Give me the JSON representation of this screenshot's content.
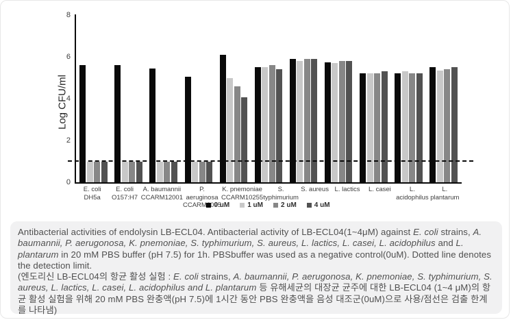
{
  "chart_data": {
    "type": "bar",
    "title": "",
    "xlabel": "",
    "ylabel": "Log CFU/ml",
    "ylim": [
      0,
      8
    ],
    "yticks": [
      0,
      2,
      4,
      6,
      8
    ],
    "grid": false,
    "legend_position": "bottom",
    "detection_limit": 1.0,
    "categories": [
      "E. coli DH5a",
      "E. coli O157:H7",
      "A. baumannii\nCCARM12001",
      "P. aeruginosa\nCCARM2095",
      "K. pnemoniae\nCCARM10255",
      "S. typhimurium",
      "S. aureus",
      "L. lactics",
      "L. casei",
      "L. acidophilus",
      "L. plantarum"
    ],
    "series": [
      {
        "name": "0 uM",
        "color": "#0a0a0a",
        "values": [
          5.6,
          5.6,
          5.45,
          5.05,
          6.1,
          5.5,
          5.9,
          5.75,
          5.2,
          5.2,
          5.5
        ]
      },
      {
        "name": "1 uM",
        "color": "#c8c8c8",
        "values": [
          1.0,
          1.0,
          1.0,
          1.0,
          5.0,
          5.5,
          5.8,
          5.7,
          5.2,
          5.3,
          5.35
        ]
      },
      {
        "name": "2 uM",
        "color": "#878787",
        "values": [
          1.0,
          1.0,
          1.0,
          1.0,
          4.6,
          5.6,
          5.9,
          5.8,
          5.2,
          5.2,
          5.4
        ]
      },
      {
        "name": "4 uM",
        "color": "#525252",
        "values": [
          1.0,
          1.0,
          1.0,
          1.0,
          4.05,
          5.4,
          5.9,
          5.8,
          5.3,
          5.2,
          5.5
        ]
      }
    ]
  },
  "caption": {
    "paragraphs": [
      [
        {
          "t": "Antibacterial activities of endolysin LB-ECL04. Antibacterial activity of LB-ECL04(1~4μM) against ",
          "i": false
        },
        {
          "t": "E. coli",
          "i": true
        },
        {
          "t": " strains, ",
          "i": false
        },
        {
          "t": "A. baumannii, P. aerugonosa, K. pnemoniae, S. typhimurium, S. aureus, L. lactics, L. casei, L. acidophilus",
          "i": true
        },
        {
          "t": " and ",
          "i": false
        },
        {
          "t": "L. plantarum",
          "i": true
        },
        {
          "t": " in 20 mM PBS buffer (pH 7.5) for 1h. PBSbuffer was used as a negative control(0uM). Dotted line denotes the detection limit.",
          "i": false
        }
      ],
      [
        {
          "t": "(엔도리신 LB-ECL04의 항균 활성 실험 : ",
          "i": false
        },
        {
          "t": "E. coli",
          "i": true
        },
        {
          "t": " strains, ",
          "i": false
        },
        {
          "t": "A. baumannii, P. aerugonosa, K. pnemoniae, S. typhimurium, S. aureus, L. lactics, L. casei, L. acidophilus and L. plantarum",
          "i": true
        },
        {
          "t": " 등 유해세균의 대장균 균주에 대한 LB-ECL04 (1~4 μM)의 항균 활성 실험을 위해 20 mM PBS 완충액(pH 7.5)에 1시간 동안 PBS 완충액을 음성 대조군(0uM)으로 사용/점선은 검출 한계를 나타냄)",
          "i": false
        }
      ]
    ]
  }
}
